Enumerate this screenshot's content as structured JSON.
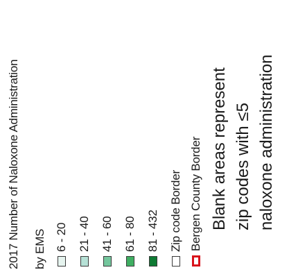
{
  "legend": {
    "title_line1": "2017 Number of Naloxone Administration",
    "title_line2": "by EMS",
    "items": [
      {
        "label": "6 - 20",
        "color": "#e6f4ef"
      },
      {
        "label": "21 - 40",
        "color": "#b6e1d6"
      },
      {
        "label": "41 - 60",
        "color": "#74c69d"
      },
      {
        "label": "61 - 80",
        "color": "#3fae62"
      },
      {
        "label": "81 - 432",
        "color": "#0e7a33"
      },
      {
        "label": "Zip code Border",
        "color": "#ffffff"
      },
      {
        "label": "Bergen County Border",
        "color": "#ffffff",
        "border_color": "#d8121b"
      }
    ]
  },
  "note": {
    "line1": "Blank areas represent",
    "line2": "zip codes with ≤5",
    "line3": "naloxone administration"
  }
}
